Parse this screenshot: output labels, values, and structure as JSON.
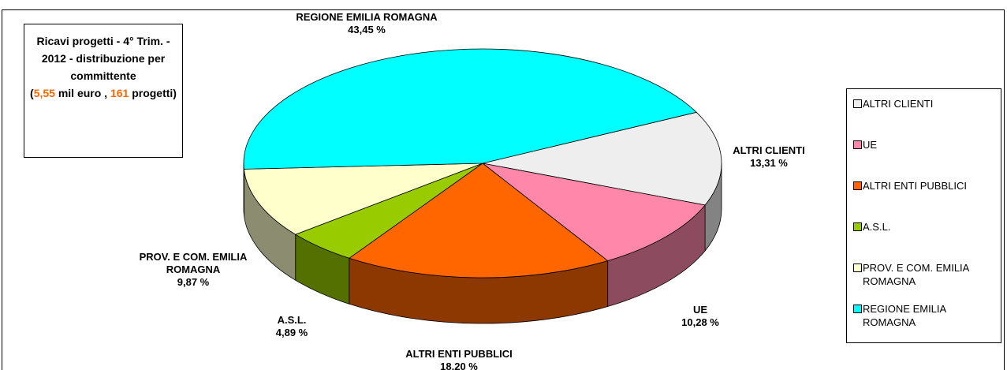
{
  "chart_data": {
    "type": "pie3d",
    "title": "Ricavi progetti - 4° Trim. - 2012 - distribuzione per committente",
    "summary_open": "(",
    "revenue": {
      "value": 5.55,
      "label": "5,55"
    },
    "revenue_unit": "mil euro ,",
    "projects": 161,
    "projects_unit": "progetti)",
    "categories": [
      "ALTRI CLIENTI",
      "UE",
      "ALTRI ENTI PUBBLICI",
      "A.S.L.",
      "PROV. E COM. EMILIA ROMAGNA",
      "REGIONE EMILIA ROMAGNA"
    ],
    "values": [
      13.31,
      10.28,
      18.2,
      4.89,
      9.87,
      43.45
    ],
    "value_labels": [
      "13,31 %",
      "10,28 %",
      "18,20 %",
      "4,89 %",
      "9,87 %",
      "43,45 %"
    ],
    "colors": [
      "#eeeeee",
      "#ff88aa",
      "#ff6600",
      "#99cc00",
      "#ffffcc",
      "#00ffff"
    ],
    "legend": "right"
  }
}
